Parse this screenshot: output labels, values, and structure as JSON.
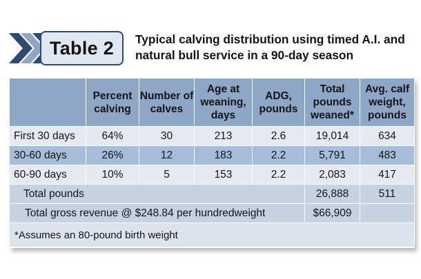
{
  "header": {
    "badge_label": "Table 2",
    "title": "Typical calving distribution using timed A.I. and natural bull service in a 90-day season",
    "colors": {
      "chevron_dark": "#2d4b6e",
      "chevron_light": "#8fa7c6",
      "badge_fill": "#dfe8f1"
    }
  },
  "table": {
    "columns": [
      "",
      "Percent calving",
      "Number of calves",
      "Age at weaning, days",
      "ADG, pounds",
      "Total pounds weaned*",
      "Avg. calf weight, pounds"
    ],
    "rows": [
      {
        "period": "First 30 days",
        "percent": "64%",
        "calves": "30",
        "age": "213",
        "adg": "2.6",
        "total": "19,014",
        "avg": "634"
      },
      {
        "period": "30-60 days",
        "percent": "26%",
        "calves": "12",
        "age": "183",
        "adg": "2.2",
        "total": "5,791",
        "avg": "483"
      },
      {
        "period": "60-90 days",
        "percent": "10%",
        "calves": "5",
        "age": "153",
        "adg": "2.2",
        "total": "2,083",
        "avg": "417"
      }
    ],
    "total_row": {
      "label": "Total pounds",
      "total": "26,888",
      "avg": "511"
    },
    "revenue_row": {
      "label": "Total gross revenue @ $248.84 per hundredweight",
      "value": "$66,909"
    },
    "footnote": "*Assumes an 80-pound birth weight",
    "colors": {
      "header_bg": "#8fa7c6",
      "row_light": "#e6eaf0",
      "row_dark": "#a6bcd8",
      "total_bg": "#c6d2e2"
    }
  }
}
